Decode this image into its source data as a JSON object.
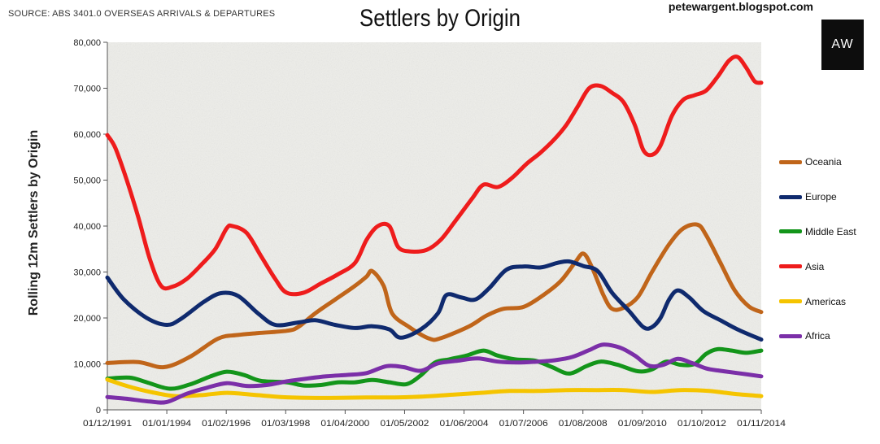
{
  "header": {
    "source": "SOURCE: ABS 3401.0 OVERSEAS ARRIVALS & DEPARTURES",
    "blog": "petewargent.blogspot.com",
    "logo_text": "AW"
  },
  "chart_data": {
    "type": "line",
    "title": "Settlers by Origin",
    "xlabel": "",
    "ylabel": "Rolling 12m Settlers by Origin",
    "ylim": [
      0,
      80000
    ],
    "yticks": [
      "0",
      "10,000",
      "20,000",
      "30,000",
      "40,000",
      "50,000",
      "60,000",
      "70,000",
      "80,000"
    ],
    "xlim": [
      1991.92,
      2014.83
    ],
    "xticks": [
      "01/12/1991",
      "01/01/1994",
      "01/02/1996",
      "01/03/1998",
      "01/04/2000",
      "01/05/2002",
      "01/06/2004",
      "01/07/2006",
      "01/08/2008",
      "01/09/2010",
      "01/10/2012",
      "01/11/2014"
    ],
    "grid": false,
    "legend_position": "right",
    "colors": {
      "plot_background": "#eeeeea",
      "axis": "#555555"
    },
    "series": [
      {
        "name": "Oceania",
        "color": "#c0651a",
        "points": [
          [
            1991.92,
            10200
          ],
          [
            1993.0,
            10400
          ],
          [
            1993.9,
            9300
          ],
          [
            1994.8,
            11500
          ],
          [
            1995.8,
            15500
          ],
          [
            1996.5,
            16300
          ],
          [
            1997.2,
            16700
          ],
          [
            1998.2,
            17200
          ],
          [
            1998.6,
            18000
          ],
          [
            1999.2,
            21000
          ],
          [
            1999.9,
            24000
          ],
          [
            2000.6,
            27000
          ],
          [
            2001.0,
            29000
          ],
          [
            2001.2,
            30200
          ],
          [
            2001.6,
            27000
          ],
          [
            2001.9,
            21000
          ],
          [
            2002.5,
            18000
          ],
          [
            2003.2,
            15500
          ],
          [
            2003.6,
            15600
          ],
          [
            2004.6,
            18200
          ],
          [
            2005.2,
            20500
          ],
          [
            2005.8,
            22000
          ],
          [
            2006.5,
            22400
          ],
          [
            2007.2,
            25000
          ],
          [
            2007.8,
            28000
          ],
          [
            2008.3,
            32000
          ],
          [
            2008.6,
            34000
          ],
          [
            2008.9,
            31000
          ],
          [
            2009.3,
            25000
          ],
          [
            2009.6,
            22000
          ],
          [
            2010.0,
            22200
          ],
          [
            2010.5,
            24500
          ],
          [
            2011.0,
            30000
          ],
          [
            2011.6,
            36000
          ],
          [
            2012.1,
            39500
          ],
          [
            2012.6,
            40300
          ],
          [
            2012.9,
            38000
          ],
          [
            2013.4,
            32000
          ],
          [
            2013.9,
            26000
          ],
          [
            2014.4,
            22500
          ],
          [
            2014.83,
            21300
          ]
        ]
      },
      {
        "name": "Europe",
        "color": "#0f2a6e",
        "points": [
          [
            1991.92,
            28800
          ],
          [
            1992.5,
            24000
          ],
          [
            1993.3,
            20000
          ],
          [
            1994.0,
            18500
          ],
          [
            1994.5,
            19800
          ],
          [
            1995.3,
            23500
          ],
          [
            1995.9,
            25400
          ],
          [
            1996.5,
            24800
          ],
          [
            1997.2,
            21000
          ],
          [
            1997.8,
            18500
          ],
          [
            1998.6,
            19000
          ],
          [
            1999.2,
            19500
          ],
          [
            1999.9,
            18500
          ],
          [
            2000.6,
            17800
          ],
          [
            2001.2,
            18200
          ],
          [
            2001.8,
            17500
          ],
          [
            2002.2,
            15700
          ],
          [
            2002.9,
            17500
          ],
          [
            2003.5,
            21000
          ],
          [
            2003.8,
            25000
          ],
          [
            2004.3,
            24500
          ],
          [
            2004.8,
            24000
          ],
          [
            2005.3,
            26500
          ],
          [
            2005.9,
            30500
          ],
          [
            2006.5,
            31200
          ],
          [
            2007.1,
            31000
          ],
          [
            2007.7,
            32000
          ],
          [
            2008.1,
            32300
          ],
          [
            2008.6,
            31300
          ],
          [
            2009.1,
            30200
          ],
          [
            2009.6,
            25500
          ],
          [
            2010.2,
            21500
          ],
          [
            2010.7,
            18000
          ],
          [
            2011.0,
            18000
          ],
          [
            2011.3,
            20000
          ],
          [
            2011.6,
            24000
          ],
          [
            2011.9,
            26000
          ],
          [
            2012.3,
            24500
          ],
          [
            2012.8,
            21500
          ],
          [
            2013.4,
            19500
          ],
          [
            2014.0,
            17500
          ],
          [
            2014.83,
            15300
          ]
        ]
      },
      {
        "name": "Middle East",
        "color": "#13951a",
        "points": [
          [
            1991.92,
            6800
          ],
          [
            1992.7,
            7000
          ],
          [
            1993.3,
            6000
          ],
          [
            1994.1,
            4600
          ],
          [
            1994.8,
            5500
          ],
          [
            1995.5,
            7200
          ],
          [
            1996.1,
            8300
          ],
          [
            1996.7,
            7600
          ],
          [
            1997.3,
            6300
          ],
          [
            1998.2,
            6000
          ],
          [
            1998.8,
            5300
          ],
          [
            1999.4,
            5400
          ],
          [
            2000.0,
            6000
          ],
          [
            2000.6,
            6000
          ],
          [
            2001.2,
            6500
          ],
          [
            2001.8,
            6000
          ],
          [
            2002.4,
            5600
          ],
          [
            2002.9,
            7500
          ],
          [
            2003.4,
            10300
          ],
          [
            2003.9,
            11000
          ],
          [
            2004.5,
            11800
          ],
          [
            2005.1,
            12900
          ],
          [
            2005.6,
            11800
          ],
          [
            2006.2,
            11000
          ],
          [
            2006.9,
            10700
          ],
          [
            2007.5,
            9300
          ],
          [
            2008.1,
            7900
          ],
          [
            2008.7,
            9500
          ],
          [
            2009.2,
            10500
          ],
          [
            2009.8,
            9800
          ],
          [
            2010.5,
            8400
          ],
          [
            2011.0,
            8800
          ],
          [
            2011.5,
            10500
          ],
          [
            2012.0,
            9800
          ],
          [
            2012.5,
            10000
          ],
          [
            2012.9,
            12200
          ],
          [
            2013.3,
            13200
          ],
          [
            2013.8,
            12900
          ],
          [
            2014.3,
            12400
          ],
          [
            2014.83,
            12900
          ]
        ]
      },
      {
        "name": "Asia",
        "color": "#ee1c1c",
        "points": [
          [
            1991.92,
            59800
          ],
          [
            1992.2,
            57000
          ],
          [
            1992.6,
            50000
          ],
          [
            1993.0,
            42000
          ],
          [
            1993.4,
            33000
          ],
          [
            1993.8,
            27000
          ],
          [
            1994.2,
            26800
          ],
          [
            1994.7,
            28500
          ],
          [
            1995.2,
            31500
          ],
          [
            1995.7,
            35000
          ],
          [
            1996.1,
            39500
          ],
          [
            1996.3,
            40000
          ],
          [
            1996.8,
            38500
          ],
          [
            1997.3,
            33500
          ],
          [
            1997.8,
            28500
          ],
          [
            1998.2,
            25500
          ],
          [
            1998.8,
            25500
          ],
          [
            1999.4,
            27500
          ],
          [
            2000.0,
            29500
          ],
          [
            2000.6,
            32000
          ],
          [
            2001.0,
            37000
          ],
          [
            2001.4,
            40000
          ],
          [
            2001.8,
            40000
          ],
          [
            2002.1,
            35500
          ],
          [
            2002.5,
            34500
          ],
          [
            2003.1,
            34800
          ],
          [
            2003.6,
            37000
          ],
          [
            2004.1,
            41000
          ],
          [
            2004.7,
            46000
          ],
          [
            2005.1,
            49000
          ],
          [
            2005.6,
            48500
          ],
          [
            2006.1,
            50500
          ],
          [
            2006.6,
            53500
          ],
          [
            2007.1,
            56000
          ],
          [
            2007.6,
            59000
          ],
          [
            2008.0,
            62000
          ],
          [
            2008.4,
            66000
          ],
          [
            2008.8,
            70000
          ],
          [
            2009.2,
            70500
          ],
          [
            2009.6,
            69000
          ],
          [
            2010.0,
            67000
          ],
          [
            2010.4,
            62000
          ],
          [
            2010.7,
            56500
          ],
          [
            2011.0,
            55500
          ],
          [
            2011.3,
            57500
          ],
          [
            2011.7,
            64000
          ],
          [
            2012.1,
            67500
          ],
          [
            2012.5,
            68500
          ],
          [
            2012.9,
            69500
          ],
          [
            2013.3,
            72500
          ],
          [
            2013.7,
            76000
          ],
          [
            2014.0,
            76800
          ],
          [
            2014.3,
            74500
          ],
          [
            2014.6,
            71500
          ],
          [
            2014.83,
            71200
          ]
        ]
      },
      {
        "name": "Americas",
        "color": "#f5c400",
        "points": [
          [
            1991.92,
            6600
          ],
          [
            1992.6,
            5200
          ],
          [
            1993.5,
            3800
          ],
          [
            1994.3,
            3000
          ],
          [
            1995.2,
            3200
          ],
          [
            1996.1,
            3700
          ],
          [
            1997.0,
            3300
          ],
          [
            1998.0,
            2800
          ],
          [
            1999.0,
            2600
          ],
          [
            2000.0,
            2600
          ],
          [
            2001.0,
            2700
          ],
          [
            2002.0,
            2700
          ],
          [
            2003.0,
            2900
          ],
          [
            2004.0,
            3300
          ],
          [
            2005.0,
            3700
          ],
          [
            2006.0,
            4100
          ],
          [
            2007.0,
            4100
          ],
          [
            2008.0,
            4300
          ],
          [
            2009.0,
            4300
          ],
          [
            2010.0,
            4300
          ],
          [
            2011.0,
            3900
          ],
          [
            2012.0,
            4300
          ],
          [
            2013.0,
            4100
          ],
          [
            2014.0,
            3400
          ],
          [
            2014.83,
            3000
          ]
        ]
      },
      {
        "name": "Africa",
        "color": "#7b2fa8",
        "points": [
          [
            1991.92,
            2800
          ],
          [
            1992.6,
            2400
          ],
          [
            1993.4,
            1800
          ],
          [
            1994.0,
            1700
          ],
          [
            1994.7,
            3500
          ],
          [
            1995.4,
            4800
          ],
          [
            1996.1,
            5800
          ],
          [
            1996.8,
            5200
          ],
          [
            1997.5,
            5400
          ],
          [
            1998.2,
            6200
          ],
          [
            1998.9,
            6800
          ],
          [
            1999.6,
            7300
          ],
          [
            2000.3,
            7600
          ],
          [
            2001.0,
            8000
          ],
          [
            2001.7,
            9500
          ],
          [
            2002.3,
            9300
          ],
          [
            2002.9,
            8500
          ],
          [
            2003.5,
            10100
          ],
          [
            2004.2,
            10700
          ],
          [
            2004.9,
            11200
          ],
          [
            2005.6,
            10500
          ],
          [
            2006.3,
            10300
          ],
          [
            2007.0,
            10500
          ],
          [
            2007.6,
            10800
          ],
          [
            2008.2,
            11500
          ],
          [
            2008.8,
            13000
          ],
          [
            2009.3,
            14200
          ],
          [
            2009.9,
            13500
          ],
          [
            2010.4,
            11800
          ],
          [
            2010.9,
            9600
          ],
          [
            2011.4,
            9800
          ],
          [
            2011.9,
            11100
          ],
          [
            2012.4,
            10200
          ],
          [
            2012.9,
            9000
          ],
          [
            2013.4,
            8500
          ],
          [
            2014.0,
            8000
          ],
          [
            2014.83,
            7300
          ]
        ]
      }
    ]
  }
}
